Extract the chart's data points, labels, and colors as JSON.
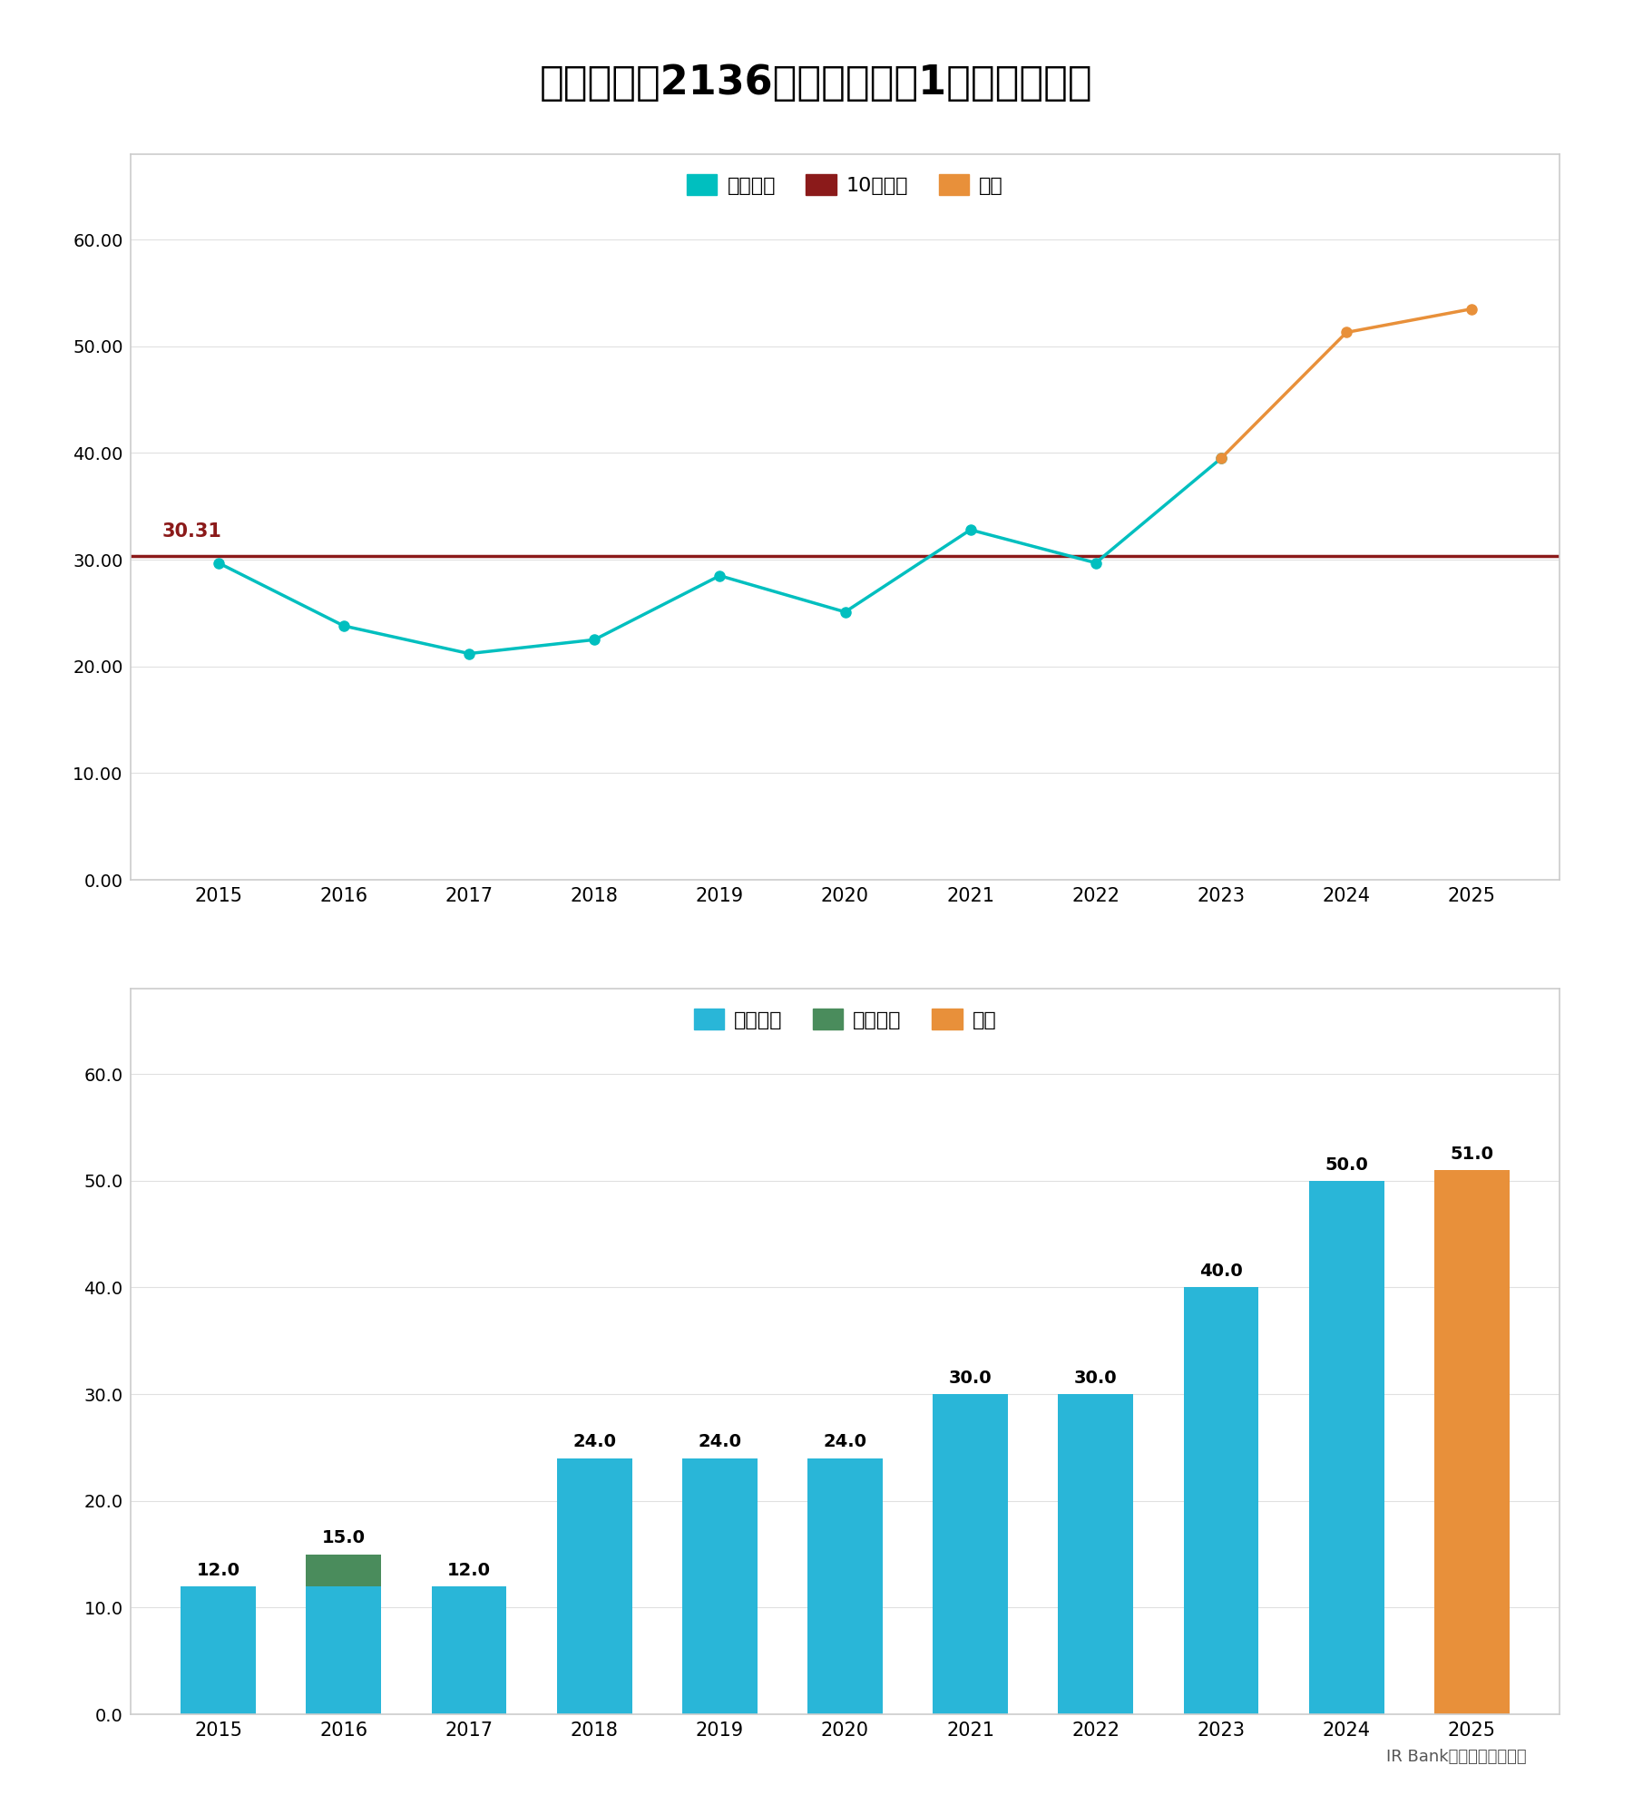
{
  "title": "証券コード2136の配当性向・1株配当の推移",
  "title_fontsize": 32,
  "years": [
    2015,
    2016,
    2017,
    2018,
    2019,
    2020,
    2021,
    2022,
    2023,
    2024,
    2025
  ],
  "top_chart": {
    "payout_ratio": [
      29.7,
      23.8,
      21.2,
      22.5,
      28.5,
      25.1,
      32.8,
      29.7,
      39.5,
      null,
      null
    ],
    "forecast_ratio": [
      null,
      null,
      null,
      null,
      null,
      null,
      null,
      null,
      null,
      51.3,
      53.5
    ],
    "avg_line": 30.31,
    "avg_color": "#8B1A1A",
    "line_color": "#00BFBF",
    "forecast_color": "#E8903A",
    "ylim": [
      0,
      68
    ],
    "yticks": [
      0,
      10.0,
      20.0,
      30.0,
      40.0,
      50.0,
      60.0
    ]
  },
  "bottom_chart": {
    "regular_div": [
      12.0,
      12.0,
      12.0,
      24.0,
      24.0,
      24.0,
      30.0,
      30.0,
      40.0,
      50.0,
      0.0
    ],
    "special_div": [
      0.0,
      3.0,
      0.0,
      0.0,
      0.0,
      0.0,
      0.0,
      0.0,
      0.0,
      0.0,
      0.0
    ],
    "forecast_div": [
      0.0,
      0.0,
      0.0,
      0.0,
      0.0,
      0.0,
      0.0,
      0.0,
      0.0,
      0.0,
      51.0
    ],
    "bar_color_regular": "#29B6D8",
    "bar_color_special": "#4A8C5C",
    "bar_color_forecast": "#E8903A",
    "ylim": [
      0,
      68
    ],
    "yticks": [
      0,
      10.0,
      20.0,
      30.0,
      40.0,
      50.0,
      60.0
    ]
  },
  "legend_top": {
    "items": [
      "配当性向",
      "10年平均",
      "予想"
    ],
    "colors": [
      "#00BFBF",
      "#8B1A1A",
      "#E8903A"
    ]
  },
  "legend_bottom": {
    "items": [
      "普通配当",
      "記念配当",
      "予想"
    ],
    "colors": [
      "#29B6D8",
      "#4A8C5C",
      "#E8903A"
    ]
  },
  "background_color": "#FFFFFF",
  "panel_background": "#FFFFFF",
  "panel_border": "#CCCCCC",
  "grid_color": "#E0E0E0",
  "footnote": "IR Bankのデータより作成"
}
